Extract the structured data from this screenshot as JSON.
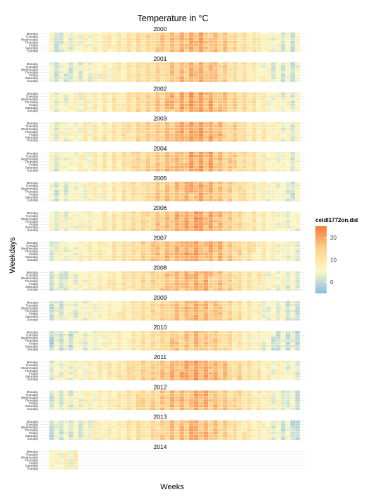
{
  "chart_data": {
    "type": "heatmap",
    "title": "Temperature in °C",
    "xlabel": "Weeks",
    "ylabel": "Weekdays",
    "facets": [
      "2000",
      "2001",
      "2002",
      "2003",
      "2004",
      "2005",
      "2006",
      "2007",
      "2008",
      "2009",
      "2010",
      "2011",
      "2012",
      "2013",
      "2014"
    ],
    "weekdays": [
      "Monday",
      "Tuesday",
      "Wednesday",
      "Thursday",
      "Friday",
      "Saturday",
      "Sunday"
    ],
    "weeks_range": [
      1,
      53
    ],
    "legend": {
      "title": "cetdl1772on.dat",
      "ticks": [
        0,
        10,
        20
      ],
      "range": [
        -5,
        25
      ],
      "colors": [
        "#87bde3",
        "#fbf8c4",
        "#fcd38c",
        "#f77a35"
      ]
    },
    "weekly_mean_temp": [
      4,
      4,
      5,
      5,
      5,
      6,
      6,
      7,
      7,
      8,
      8,
      9,
      9,
      10,
      10,
      11,
      12,
      12,
      13,
      14,
      14,
      15,
      16,
      16,
      17,
      18,
      18,
      19,
      19,
      20,
      20,
      20,
      19,
      19,
      18,
      17,
      16,
      15,
      14,
      13,
      12,
      11,
      10,
      9,
      8,
      7,
      6,
      6,
      5,
      5,
      4,
      4,
      4
    ],
    "year_offsets": [
      0,
      -1,
      1,
      1,
      1,
      0,
      1,
      1,
      0,
      -1,
      -2,
      1,
      0,
      -1,
      2
    ],
    "last_year_weeks": 6
  }
}
